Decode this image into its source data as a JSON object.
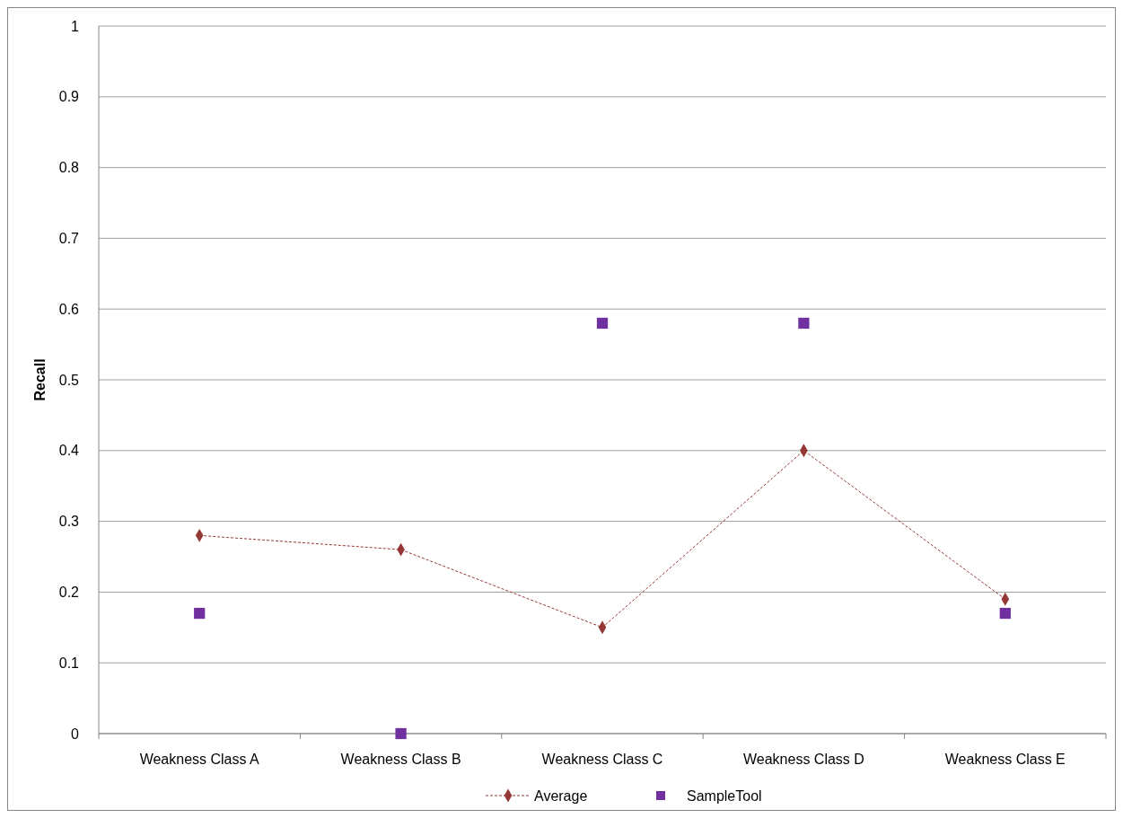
{
  "chart_data": {
    "type": "line",
    "ylabel": "Recall",
    "categories": [
      "Weakness Class A",
      "Weakness Class B",
      "Weakness Class C",
      "Weakness Class D",
      "Weakness Class E"
    ],
    "series": [
      {
        "name": "Average",
        "color": "#953735",
        "marker": "diamond",
        "line_style": "dashed",
        "values": [
          0.28,
          0.26,
          0.15,
          0.4,
          0.19
        ]
      },
      {
        "name": "SampleTool",
        "type": "scatter",
        "color": "#7030a0",
        "marker": "square",
        "values": [
          0.17,
          0,
          0.58,
          0.58,
          0.17
        ]
      }
    ],
    "ylim": [
      0,
      1
    ],
    "yticks": [
      0,
      0.1,
      0.2,
      0.3,
      0.4,
      0.5,
      0.6,
      0.7,
      0.8,
      0.9,
      1
    ],
    "grid": "y",
    "legend": "bottom"
  }
}
